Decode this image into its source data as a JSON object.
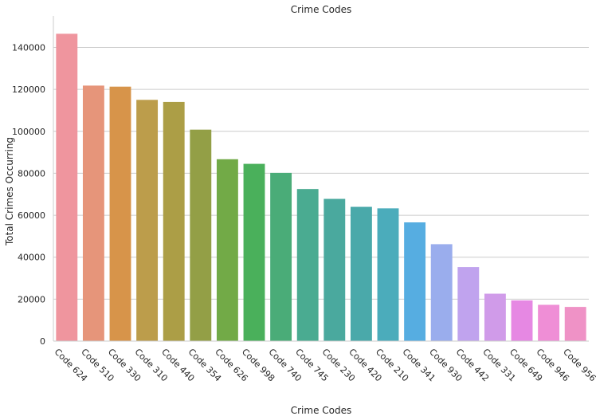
{
  "chart_data": {
    "type": "bar",
    "title": "Crime Codes",
    "xlabel": "Crime Codes",
    "ylabel": "Total Crimes Occurring",
    "ylim": [
      0,
      155000
    ],
    "yticks": [
      0,
      20000,
      40000,
      60000,
      80000,
      100000,
      120000,
      140000
    ],
    "grid": "horizontal",
    "categories": [
      "Code 624",
      "Code 510",
      "Code 330",
      "Code 310",
      "Code 440",
      "Code 354",
      "Code 626",
      "Code 998",
      "Code 740",
      "Code 745",
      "Code 230",
      "Code 420",
      "Code 210",
      "Code 341",
      "Code 930",
      "Code 442",
      "Code 331",
      "Code 649",
      "Code 946",
      "Code 956"
    ],
    "values": [
      146500,
      121800,
      121300,
      115000,
      114000,
      100800,
      86700,
      84500,
      80200,
      72500,
      67800,
      64000,
      63300,
      56600,
      46200,
      35300,
      22600,
      19400,
      17300,
      16300
    ],
    "colors": [
      "#ef959e",
      "#e6957a",
      "#d7944a",
      "#bc9d4b",
      "#ac9e46",
      "#939f46",
      "#72aa47",
      "#4ab05b",
      "#4aac78",
      "#4aab91",
      "#4aa99e",
      "#4aa9aa",
      "#4bacbb",
      "#56ade1",
      "#9aaded",
      "#c0a3ee",
      "#d09be9",
      "#e688e3",
      "#ef8ed6",
      "#ef92c6"
    ]
  }
}
